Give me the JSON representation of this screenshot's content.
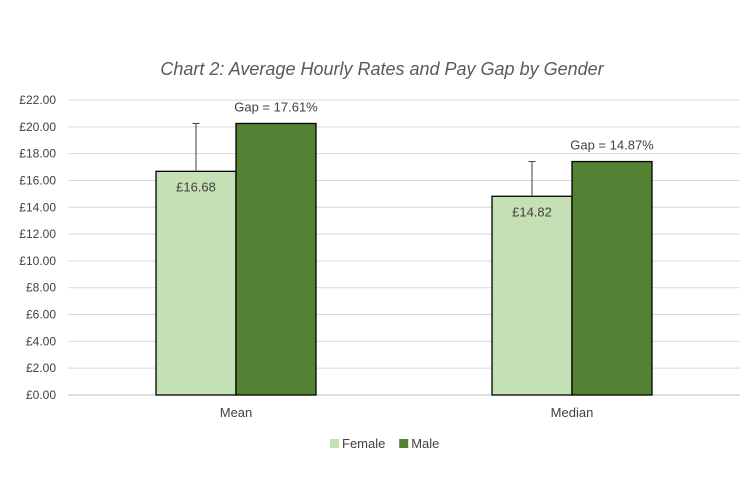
{
  "chart_data": {
    "type": "bar",
    "title": "Chart 2: Average Hourly Rates and Pay Gap by Gender",
    "xlabel": "",
    "ylabel": "",
    "categories": [
      "Mean",
      "Median"
    ],
    "series": [
      {
        "name": "Female",
        "values": [
          16.68,
          14.82
        ],
        "color": "#c5e0b4"
      },
      {
        "name": "Male",
        "values": [
          20.25,
          17.41
        ],
        "color": "#548235"
      }
    ],
    "ylim": [
      0,
      22
    ],
    "yticks": [
      0,
      2,
      4,
      6,
      8,
      10,
      12,
      14,
      16,
      18,
      20,
      22
    ],
    "ytick_labels": [
      "£0.00",
      "£2.00",
      "£4.00",
      "£6.00",
      "£8.00",
      "£10.00",
      "£12.00",
      "£14.00",
      "£16.00",
      "£18.00",
      "£20.00",
      "£22.00"
    ],
    "data_labels": {
      "Female": [
        "£16.68",
        "£14.82"
      ]
    },
    "gap_labels": [
      "Gap = 17.61%",
      "Gap = 14.87%"
    ],
    "error_bar_tops": [
      20.25,
      17.41
    ],
    "grid": true,
    "legend": "bottom",
    "colors": {
      "grid": "#d9d9d9",
      "axis": "#bfbfbf",
      "bar_border": "#000000"
    }
  }
}
